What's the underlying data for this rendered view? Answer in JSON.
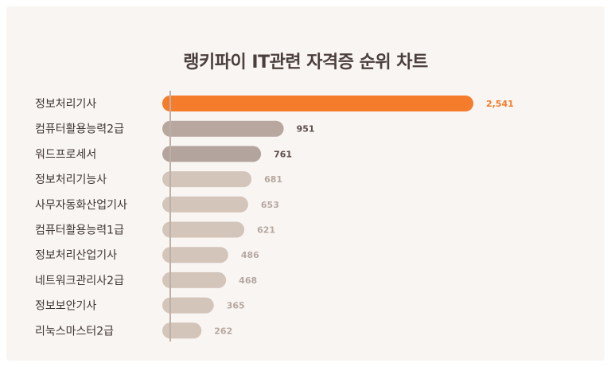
{
  "chart_data": {
    "type": "bar",
    "orientation": "horizontal",
    "title": "랭키파이 IT관련 자격증 순위 차트",
    "categories": [
      "정보처리기사",
      "컴퓨터활용능력2급",
      "워드프로세서",
      "정보처리기능사",
      "사무자동화산업기사",
      "컴퓨터활용능력1급",
      "정보처리산업기사",
      "네트워크관리사2급",
      "정보보안기사",
      "리눅스마스터2급"
    ],
    "values": [
      2541,
      951,
      761,
      681,
      653,
      621,
      486,
      468,
      365,
      262
    ],
    "value_labels": [
      "2,541",
      "951",
      "761",
      "681",
      "653",
      "621",
      "486",
      "468",
      "365",
      "262"
    ],
    "xlim": [
      0,
      2541
    ],
    "grid": false,
    "legend": "none"
  },
  "colors": {
    "background": "#f9f5f2",
    "axis": "#bdb0a8",
    "title": "#4a3f3c",
    "category_text": "#3d3533",
    "bar_top": "#f47c2a",
    "bar_second": "#b7a79f",
    "bar_third": "#b3a59d",
    "bar_rest": "#d4c5bb",
    "value_top": "#f47c2a",
    "value_second": "#5a4e4a",
    "value_rest": "#b5a8a0"
  }
}
